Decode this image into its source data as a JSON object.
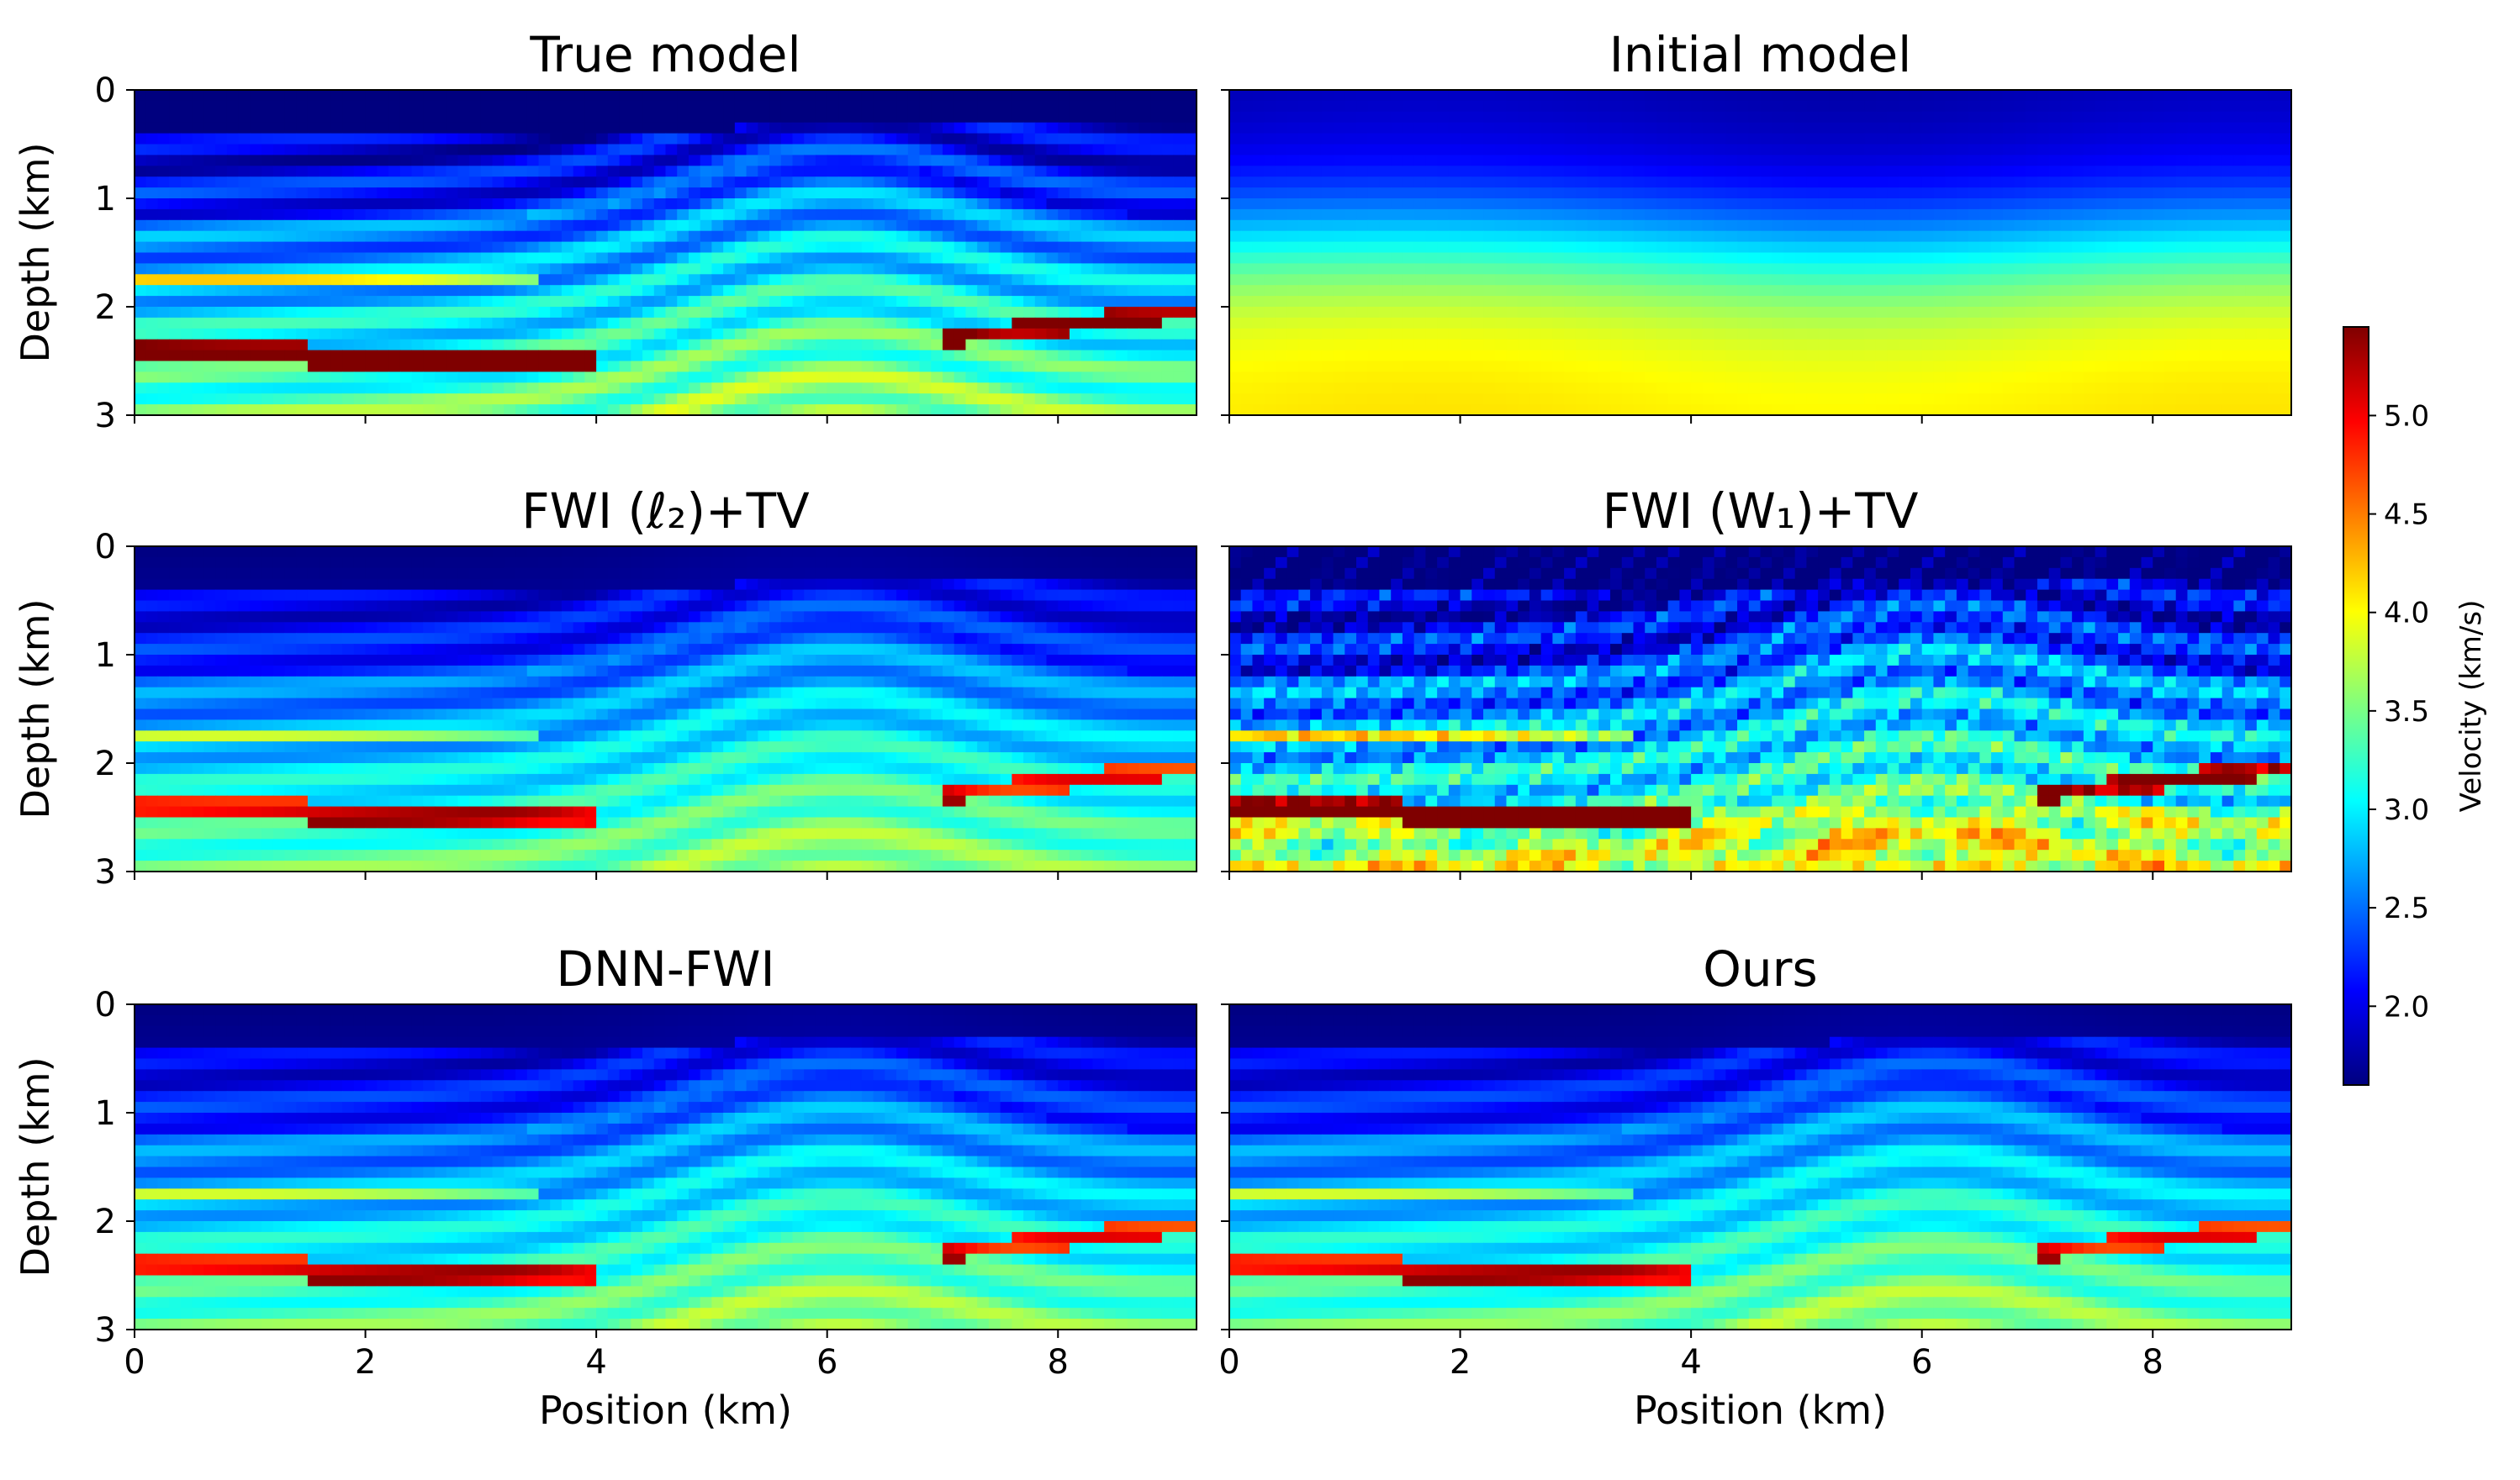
{
  "chart_data": [
    {
      "type": "heatmap",
      "title": "True model",
      "xlabel": "",
      "ylabel": "Depth (km)",
      "xlim": [
        0,
        9.2
      ],
      "ylim": [
        3,
        0
      ],
      "xticks": [
        0,
        2,
        4,
        6,
        8
      ],
      "yticks": [
        0,
        1,
        2,
        3
      ],
      "xtick_labels_visible": false,
      "ytick_labels_visible": true
    },
    {
      "type": "heatmap",
      "title": "Initial model",
      "xlabel": "",
      "ylabel": "",
      "xlim": [
        0,
        9.2
      ],
      "ylim": [
        3,
        0
      ],
      "xticks": [
        0,
        2,
        4,
        6,
        8
      ],
      "yticks": [
        0,
        1,
        2,
        3
      ],
      "xtick_labels_visible": false,
      "ytick_labels_visible": false
    },
    {
      "type": "heatmap",
      "title": "FWI (ℓ₂)+TV",
      "xlabel": "",
      "ylabel": "Depth (km)",
      "xlim": [
        0,
        9.2
      ],
      "ylim": [
        3,
        0
      ],
      "xticks": [
        0,
        2,
        4,
        6,
        8
      ],
      "yticks": [
        0,
        1,
        2,
        3
      ],
      "xtick_labels_visible": false,
      "ytick_labels_visible": true
    },
    {
      "type": "heatmap",
      "title": "FWI (W₁)+TV",
      "xlabel": "",
      "ylabel": "",
      "xlim": [
        0,
        9.2
      ],
      "ylim": [
        3,
        0
      ],
      "xticks": [
        0,
        2,
        4,
        6,
        8
      ],
      "yticks": [
        0,
        1,
        2,
        3
      ],
      "xtick_labels_visible": false,
      "ytick_labels_visible": false
    },
    {
      "type": "heatmap",
      "title": "DNN-FWI",
      "xlabel": "Position (km)",
      "ylabel": "Depth (km)",
      "xlim": [
        0,
        9.2
      ],
      "ylim": [
        3,
        0
      ],
      "xticks": [
        0,
        2,
        4,
        6,
        8
      ],
      "yticks": [
        0,
        1,
        2,
        3
      ],
      "xtick_labels_visible": true,
      "ytick_labels_visible": true
    },
    {
      "type": "heatmap",
      "title": "Ours",
      "xlabel": "Position (km)",
      "ylabel": "",
      "xlim": [
        0,
        9.2
      ],
      "ylim": [
        3,
        0
      ],
      "xticks": [
        0,
        2,
        4,
        6,
        8
      ],
      "yticks": [
        0,
        1,
        2,
        3
      ],
      "xtick_labels_visible": true,
      "ytick_labels_visible": false
    }
  ],
  "colorbar": {
    "label": "Velocity (km/s)",
    "range": [
      1.6,
      5.45
    ],
    "ticks": [
      2.0,
      2.5,
      3.0,
      3.5,
      4.0,
      4.5,
      5.0
    ],
    "tick_labels": [
      "2.0",
      "2.5",
      "3.0",
      "3.5",
      "4.0",
      "4.5",
      "5.0"
    ],
    "colormap": "jet",
    "colormap_stops": [
      "#00007f",
      "#0000ff",
      "#007fff",
      "#00ffff",
      "#7fff7f",
      "#ffff00",
      "#ff7f00",
      "#ff0000",
      "#7f0000"
    ]
  }
}
